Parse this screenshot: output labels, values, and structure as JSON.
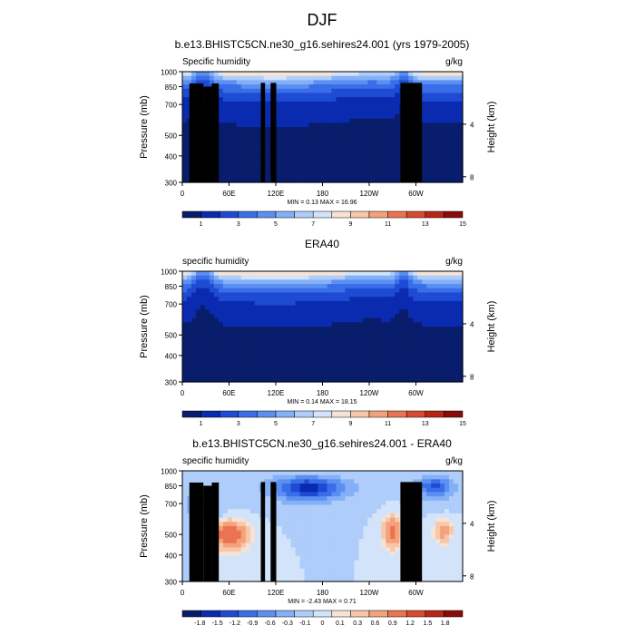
{
  "page": {
    "title": "DJF"
  },
  "colormaps": {
    "abs": [
      "#081d6b",
      "#0a2bb0",
      "#1e4bd4",
      "#3a6ee8",
      "#5b8ff2",
      "#84b0f7",
      "#aecdfb",
      "#d2e3fa",
      "#f5e3d6",
      "#f8c7aa",
      "#f4a27c",
      "#ea7452",
      "#d84a2f",
      "#b82516",
      "#8a0c0a"
    ],
    "diff": [
      "#081d6b",
      "#0a2bb0",
      "#1e4bd4",
      "#3a6ee8",
      "#5b8ff2",
      "#84b0f7",
      "#aecdfb",
      "#d2e3fa",
      "#f5e3d6",
      "#f8c7aa",
      "#f4a27c",
      "#ea7452",
      "#d84a2f",
      "#b82516",
      "#8a0c0a"
    ]
  },
  "panels": [
    {
      "title": "b.e13.BHISTC5CN.ne30_g16.sehires24.001 (yrs 1979-2005)",
      "var_label": "Specific humidity",
      "units": "g/kg",
      "y_label": "Pressure (mb)",
      "y2_label": "Height (km)",
      "y_ticks": [
        "300",
        "400",
        "500",
        "700",
        "850",
        "1000"
      ],
      "y2_ticks": [
        "8",
        "4"
      ],
      "x_ticks": [
        "0",
        "60E",
        "120E",
        "180",
        "120W",
        "60W"
      ],
      "minmax": "MIN =   0.13  MAX =  16.96",
      "colorbar_labels": [
        "1",
        "3",
        "5",
        "7",
        "9",
        "11",
        "13",
        "15"
      ],
      "kind": "abs",
      "terrain": true
    },
    {
      "title": "ERA40",
      "var_label": "specific humidity",
      "units": "g/kg",
      "y_label": "Pressure (mb)",
      "y2_label": "Height (km)",
      "y_ticks": [
        "300",
        "400",
        "500",
        "700",
        "850",
        "1000"
      ],
      "y2_ticks": [
        "8",
        "4"
      ],
      "x_ticks": [
        "0",
        "60E",
        "120E",
        "180",
        "120W",
        "60W"
      ],
      "minmax": "MIN =   0.14  MAX =  18.15",
      "colorbar_labels": [
        "1",
        "3",
        "5",
        "7",
        "9",
        "11",
        "13",
        "15"
      ],
      "kind": "abs",
      "terrain": false
    },
    {
      "title": "b.e13.BHISTC5CN.ne30_g16.sehires24.001 - ERA40",
      "var_label": "specific humidity",
      "units": "g/kg",
      "y_label": "Pressure (mb)",
      "y2_label": "Height (km)",
      "y_ticks": [
        "300",
        "400",
        "500",
        "700",
        "850",
        "1000"
      ],
      "y2_ticks": [
        "8",
        "4"
      ],
      "x_ticks": [
        "0",
        "60E",
        "120E",
        "180",
        "120W",
        "60W"
      ],
      "minmax": "MIN =  -2.43  MAX =   0.71",
      "colorbar_labels": [
        "-1.8",
        "-1.5",
        "-1.2",
        "-0.9",
        "-0.6",
        "-0.3",
        "-0.1",
        "0",
        "0.1",
        "0.3",
        "0.6",
        "0.9",
        "1.2",
        "1.5",
        "1.8"
      ],
      "kind": "diff",
      "terrain": true
    }
  ],
  "chart_data": [
    {
      "type": "heatmap",
      "title": "b.e13.BHISTC5CN.ne30_g16.sehires24.001 (yrs 1979-2005)",
      "xlabel": "",
      "ylabel": "Pressure (mb)",
      "y2label": "Height (km)",
      "x_tick_labels": [
        "0",
        "60E",
        "120E",
        "180",
        "120W",
        "60W"
      ],
      "y_tick_labels": [
        300,
        400,
        500,
        700,
        850,
        1000
      ],
      "y2_tick_labels": [
        8,
        4
      ],
      "ylim": [
        1000,
        300
      ],
      "levels": [
        1,
        3,
        5,
        7,
        9,
        11,
        13,
        15
      ],
      "min": 0.13,
      "max": 16.96,
      "units": "g/kg"
    },
    {
      "type": "heatmap",
      "title": "ERA40",
      "xlabel": "",
      "ylabel": "Pressure (mb)",
      "y2label": "Height (km)",
      "x_tick_labels": [
        "0",
        "60E",
        "120E",
        "180",
        "120W",
        "60W"
      ],
      "y_tick_labels": [
        300,
        400,
        500,
        700,
        850,
        1000
      ],
      "y2_tick_labels": [
        8,
        4
      ],
      "ylim": [
        1000,
        300
      ],
      "levels": [
        1,
        3,
        5,
        7,
        9,
        11,
        13,
        15
      ],
      "min": 0.14,
      "max": 18.15,
      "units": "g/kg"
    },
    {
      "type": "heatmap",
      "title": "b.e13.BHISTC5CN.ne30_g16.sehires24.001 - ERA40",
      "xlabel": "",
      "ylabel": "Pressure (mb)",
      "y2label": "Height (km)",
      "x_tick_labels": [
        "0",
        "60E",
        "120E",
        "180",
        "120W",
        "60W"
      ],
      "y_tick_labels": [
        300,
        400,
        500,
        700,
        850,
        1000
      ],
      "y2_tick_labels": [
        8,
        4
      ],
      "ylim": [
        1000,
        300
      ],
      "levels": [
        -1.8,
        -1.5,
        -1.2,
        -0.9,
        -0.6,
        -0.3,
        -0.1,
        0,
        0.1,
        0.3,
        0.6,
        0.9,
        1.2,
        1.5,
        1.8
      ],
      "min": -2.43,
      "max": 0.71,
      "units": "g/kg"
    }
  ]
}
